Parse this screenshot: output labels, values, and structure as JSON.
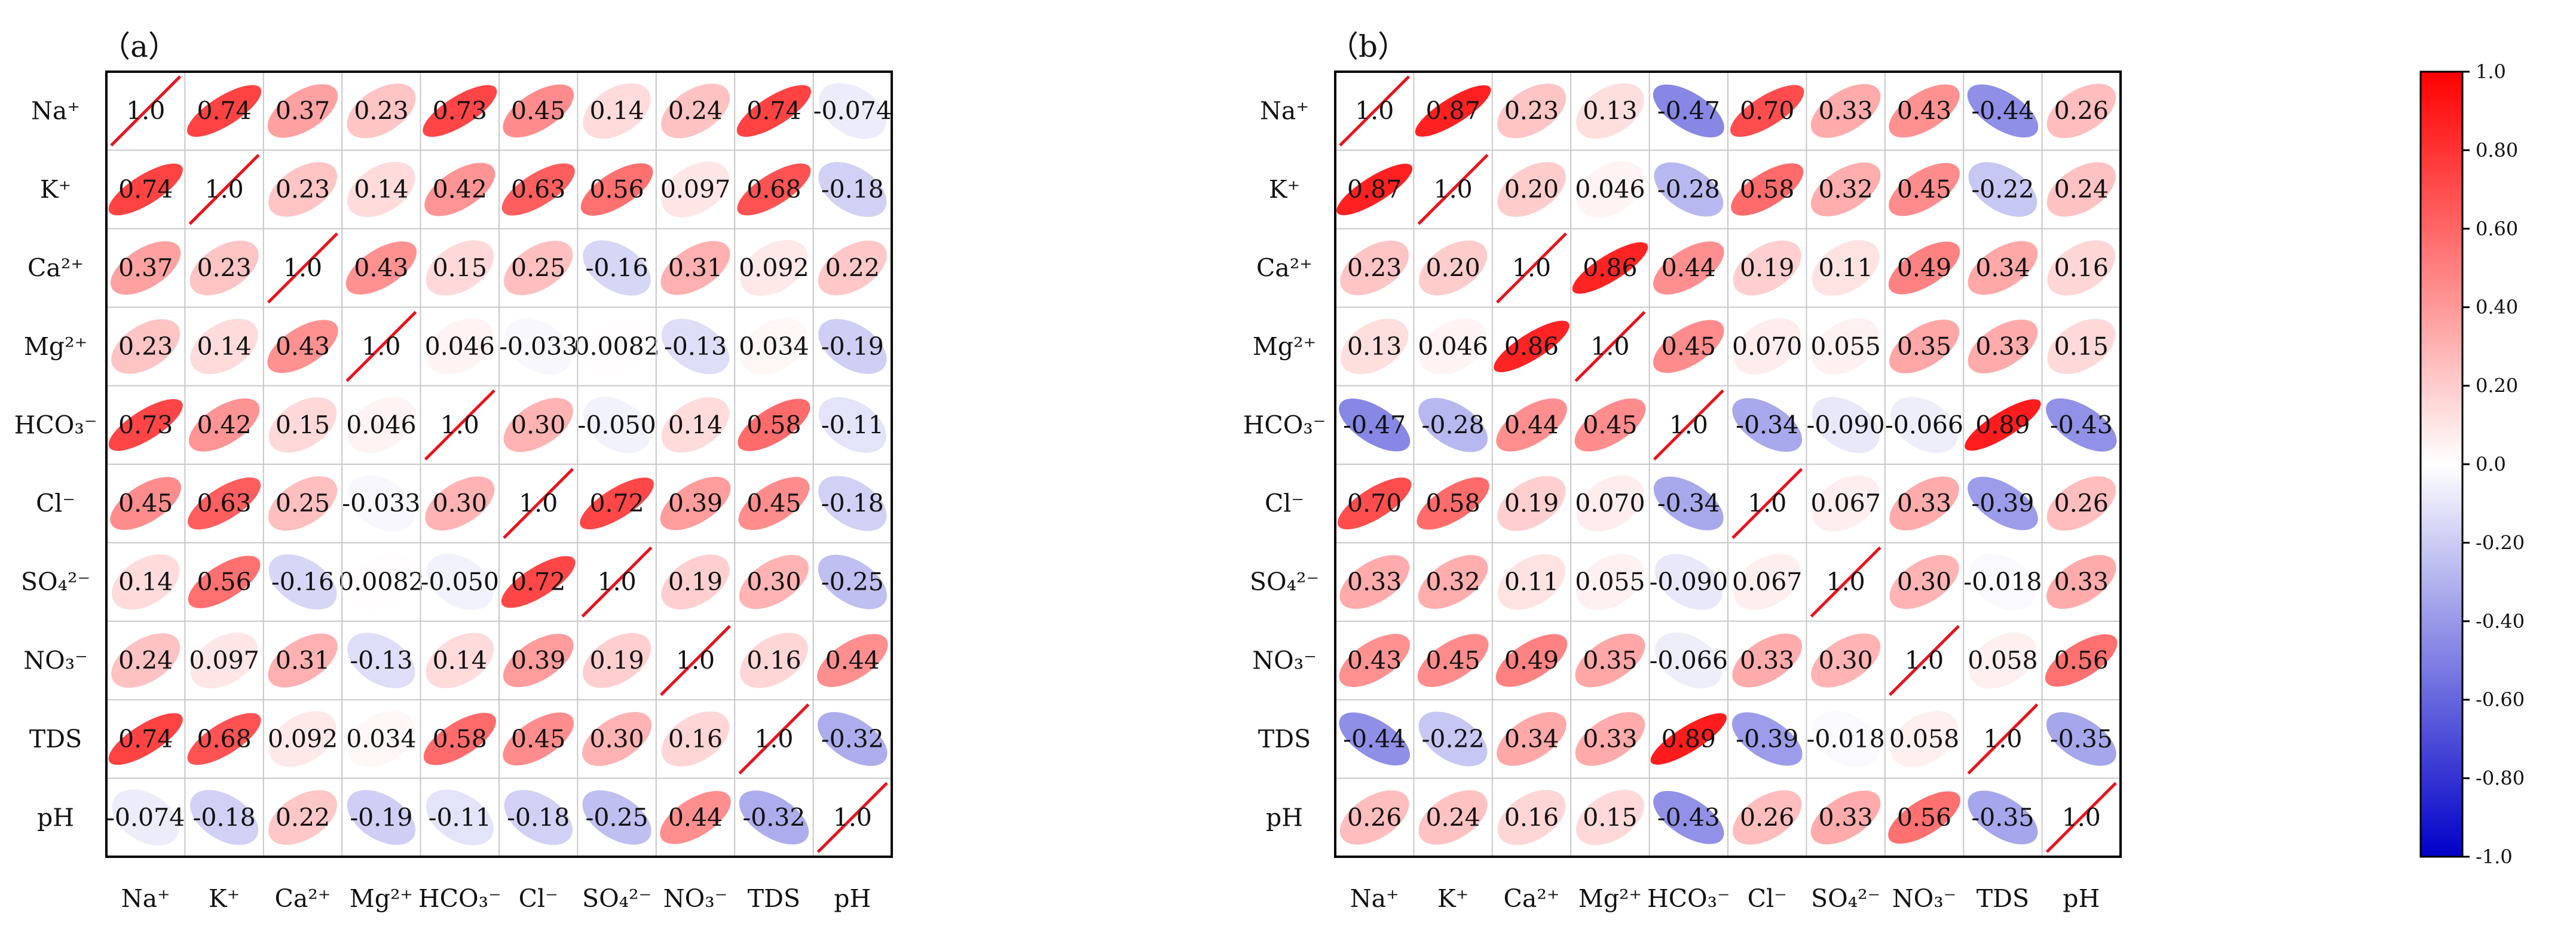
{
  "chart_data": [
    {
      "type": "heatmap",
      "panel_label": "（a）",
      "rows": [
        "Na⁺",
        "K⁺",
        "Ca²⁺",
        "Mg²⁺",
        "HCO₃⁻",
        "Cl⁻",
        "SO₄²⁻",
        "NO₃⁻",
        "TDS",
        "pH"
      ],
      "columns": [
        "Na⁺",
        "K⁺",
        "Ca²⁺",
        "Mg²⁺",
        "HCO₃⁻",
        "Cl⁻",
        "SO₄²⁻",
        "NO₃⁻",
        "TDS",
        "pH"
      ],
      "labels": [
        [
          "1.0",
          "0.74",
          "0.37",
          "0.23",
          "0.73",
          "0.45",
          "0.14",
          "0.24",
          "0.74",
          "-0.074"
        ],
        [
          "0.74",
          "1.0",
          "0.23",
          "0.14",
          "0.42",
          "0.63",
          "0.56",
          "0.097",
          "0.68",
          "-0.18"
        ],
        [
          "0.37",
          "0.23",
          "1.0",
          "0.43",
          "0.15",
          "0.25",
          "-0.16",
          "0.31",
          "0.092",
          "0.22"
        ],
        [
          "0.23",
          "0.14",
          "0.43",
          "1.0",
          "0.046",
          "-0.033",
          "0.0082",
          "-0.13",
          "0.034",
          "-0.19"
        ],
        [
          "0.73",
          "0.42",
          "0.15",
          "0.046",
          "1.0",
          "0.30",
          "-0.050",
          "0.14",
          "0.58",
          "-0.11"
        ],
        [
          "0.45",
          "0.63",
          "0.25",
          "-0.033",
          "0.30",
          "1.0",
          "0.72",
          "0.39",
          "0.45",
          "-0.18"
        ],
        [
          "0.14",
          "0.56",
          "-0.16",
          "0.0082",
          "-0.050",
          "0.72",
          "1.0",
          "0.19",
          "0.30",
          "-0.25"
        ],
        [
          "0.24",
          "0.097",
          "0.31",
          "-0.13",
          "0.14",
          "0.39",
          "0.19",
          "1.0",
          "0.16",
          "0.44"
        ],
        [
          "0.74",
          "0.68",
          "0.092",
          "0.034",
          "0.58",
          "0.45",
          "0.30",
          "0.16",
          "1.0",
          "-0.32"
        ],
        [
          "-0.074",
          "-0.18",
          "0.22",
          "-0.19",
          "-0.11",
          "-0.18",
          "-0.25",
          "0.44",
          "-0.32",
          "1.0"
        ]
      ]
    },
    {
      "type": "heatmap",
      "panel_label": "（b）",
      "rows": [
        "Na⁺",
        "K⁺",
        "Ca²⁺",
        "Mg²⁺",
        "HCO₃⁻",
        "Cl⁻",
        "SO₄²⁻",
        "NO₃⁻",
        "TDS",
        "pH"
      ],
      "columns": [
        "Na⁺",
        "K⁺",
        "Ca²⁺",
        "Mg²⁺",
        "HCO₃⁻",
        "Cl⁻",
        "SO₄²⁻",
        "NO₃⁻",
        "TDS",
        "pH"
      ],
      "labels": [
        [
          "1.0",
          "0.87",
          "0.23",
          "0.13",
          "-0.47",
          "0.70",
          "0.33",
          "0.43",
          "-0.44",
          "0.26"
        ],
        [
          "0.87",
          "1.0",
          "0.20",
          "0.046",
          "-0.28",
          "0.58",
          "0.32",
          "0.45",
          "-0.22",
          "0.24"
        ],
        [
          "0.23",
          "0.20",
          "1.0",
          "0.86",
          "0.44",
          "0.19",
          "0.11",
          "0.49",
          "0.34",
          "0.16"
        ],
        [
          "0.13",
          "0.046",
          "0.86",
          "1.0",
          "0.45",
          "0.070",
          "0.055",
          "0.35",
          "0.33",
          "0.15"
        ],
        [
          "-0.47",
          "-0.28",
          "0.44",
          "0.45",
          "1.0",
          "-0.34",
          "-0.090",
          "-0.066",
          "0.89",
          "-0.43"
        ],
        [
          "0.70",
          "0.58",
          "0.19",
          "0.070",
          "-0.34",
          "1.0",
          "0.067",
          "0.33",
          "-0.39",
          "0.26"
        ],
        [
          "0.33",
          "0.32",
          "0.11",
          "0.055",
          "-0.090",
          "0.067",
          "1.0",
          "0.30",
          "-0.018",
          "0.33"
        ],
        [
          "0.43",
          "0.45",
          "0.49",
          "0.35",
          "-0.066",
          "0.33",
          "0.30",
          "1.0",
          "0.058",
          "0.56"
        ],
        [
          "-0.44",
          "-0.22",
          "0.34",
          "0.33",
          "0.89",
          "-0.39",
          "-0.018",
          "0.058",
          "1.0",
          "-0.35"
        ],
        [
          "0.26",
          "0.24",
          "0.16",
          "0.15",
          "-0.43",
          "0.26",
          "0.33",
          "0.56",
          "-0.35",
          "1.0"
        ]
      ]
    }
  ],
  "colorbar": {
    "range": [
      -1.0,
      1.0
    ],
    "ticks": [
      "1.0",
      "0.80",
      "0.60",
      "0.40",
      "0.20",
      "0.0",
      "-0.20",
      "-0.40",
      "-0.60",
      "-0.80",
      "-1.0"
    ],
    "low_color": "#0000c8",
    "mid_color": "#ffffff",
    "high_color": "#ff0000"
  },
  "colors": {
    "diagonal_line": "#e8141e",
    "grid": "#c8c8c8",
    "frame": "#000000"
  }
}
